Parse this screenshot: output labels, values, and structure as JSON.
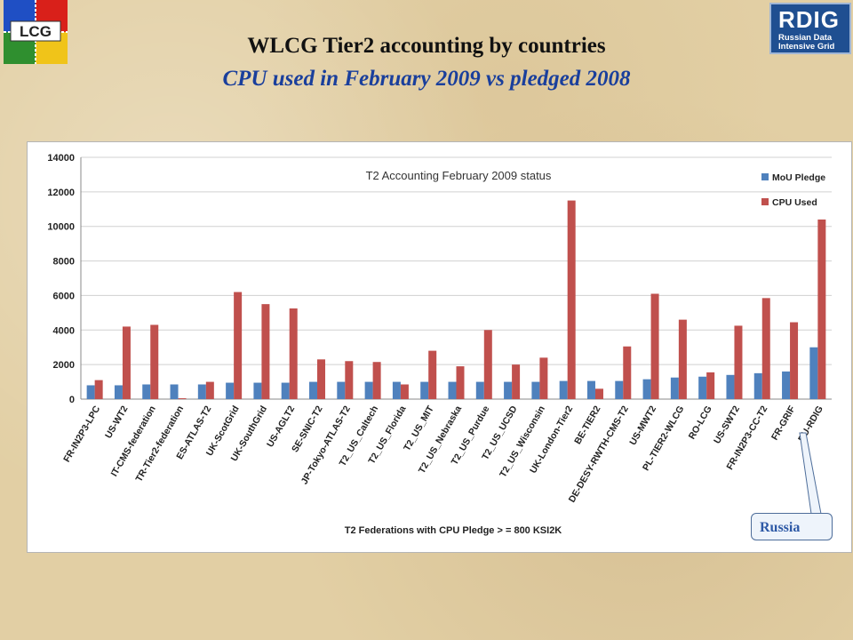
{
  "header": {
    "title": "WLCG Tier2 accounting by countries",
    "subtitle": "CPU used in February 2009   vs   pledged 2008"
  },
  "logos": {
    "lcg_text": "LCG",
    "rdig_title": "RDIG",
    "rdig_line1": "Russian Data",
    "rdig_line2": "Intensive Grid"
  },
  "callout": {
    "label": "Russia"
  },
  "colors": {
    "pledge": "#4f81bd",
    "used": "#c0504d",
    "subtitle": "#1a3f9c",
    "background": "#e2cfa4"
  },
  "chart_data": {
    "type": "bar",
    "title": "T2 Accounting February 2009 status",
    "xlabel": "T2 Federations with CPU Pledge > = 800 KSI2K",
    "ylabel": "",
    "ylim": [
      0,
      14000
    ],
    "yticks": [
      0,
      2000,
      4000,
      6000,
      8000,
      10000,
      12000,
      14000
    ],
    "grid": true,
    "legend_position": "top-right",
    "categories": [
      "FR-IN2P3-LPC",
      "US-WT2",
      "IT-CMS-federation",
      "TR-Tier2-federation",
      "ES-ATLAS-T2",
      "UK-ScotGrid",
      "UK-SouthGrid",
      "US-AGLT2",
      "SE-SNIC-T2",
      "JP-Tokyo-ATLAS-T2",
      "T2_US_Caltech",
      "T2_US_Florida",
      "T2_US_MIT",
      "T2_US_Nebraska",
      "T2_US_Purdue",
      "T2_US_UCSD",
      "T2_US_Wisconsin",
      "UK-London-Tier2",
      "BE-TIER2",
      "DE-DESY-RWTH-CMS-T2",
      "US-MWT2",
      "PL-TIER2-WLCG",
      "RO-LCG",
      "US-SWT2",
      "FR-IN2P3-CC-T2",
      "FR-GRIF",
      "RU-RDIG"
    ],
    "series": [
      {
        "name": "MoU Pledge",
        "values": [
          800,
          800,
          850,
          850,
          850,
          950,
          950,
          950,
          1000,
          1000,
          1000,
          1000,
          1000,
          1000,
          1000,
          1000,
          1000,
          1050,
          1050,
          1050,
          1150,
          1250,
          1300,
          1400,
          1500,
          1600,
          3000
        ]
      },
      {
        "name": "CPU Used",
        "values": [
          1100,
          4200,
          4300,
          50,
          1000,
          6200,
          5500,
          5250,
          2300,
          2200,
          2150,
          850,
          2800,
          1900,
          4000,
          2000,
          2400,
          11500,
          600,
          3050,
          6100,
          4600,
          1550,
          4250,
          5850,
          4450,
          10400
        ]
      }
    ]
  }
}
